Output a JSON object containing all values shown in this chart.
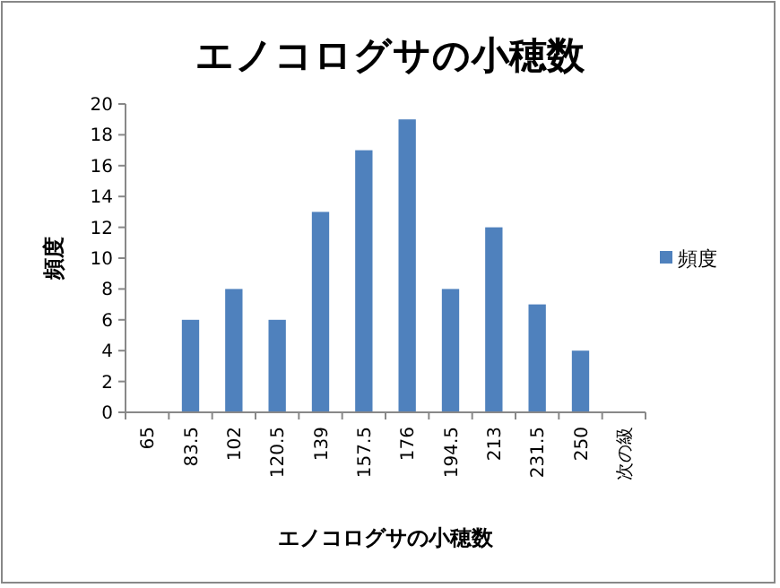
{
  "chart_data": {
    "type": "bar",
    "title": "エノコログサの小穂数",
    "xlabel": "エノコログサの小穂数",
    "ylabel": "頻度",
    "categories": [
      "65",
      "83.5",
      "102",
      "120.5",
      "139",
      "157.5",
      "176",
      "194.5",
      "213",
      "231.5",
      "250",
      "次の級"
    ],
    "series": [
      {
        "name": "頻度",
        "color": "#4f81bd",
        "values": [
          0,
          6,
          8,
          6,
          13,
          17,
          19,
          8,
          12,
          7,
          4,
          0
        ]
      }
    ],
    "ylim": [
      0,
      20
    ],
    "yticks": [
      0,
      2,
      4,
      6,
      8,
      10,
      12,
      14,
      16,
      18,
      20
    ],
    "grid": false,
    "legend": "right"
  }
}
